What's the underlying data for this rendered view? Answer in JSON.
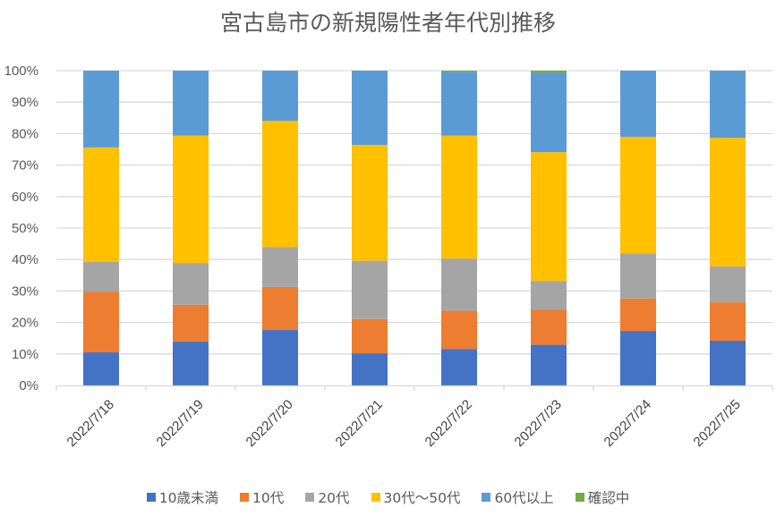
{
  "chart_data": {
    "type": "bar",
    "stacked": true,
    "percent_stacked": true,
    "title": "宮古島市の新規陽性者年代別推移",
    "xlabel": "",
    "ylabel": "",
    "ylim": [
      0,
      100
    ],
    "yticks": [
      "0%",
      "10%",
      "20%",
      "30%",
      "40%",
      "50%",
      "60%",
      "70%",
      "80%",
      "90%",
      "100%"
    ],
    "grid": true,
    "legend_position": "bottom",
    "categories": [
      "2022/7/18",
      "2022/7/19",
      "2022/7/20",
      "2022/7/21",
      "2022/7/22",
      "2022/7/23",
      "2022/7/24",
      "2022/7/25"
    ],
    "series": [
      {
        "name": "10歳未満",
        "color": "#4472C4",
        "values": [
          10.5,
          13.9,
          17.6,
          10.2,
          11.6,
          12.9,
          17.3,
          14.2
        ]
      },
      {
        "name": "10代",
        "color": "#ED7D31",
        "values": [
          19.3,
          11.7,
          13.7,
          10.9,
          12.1,
          11.1,
          10.3,
          12.2
        ]
      },
      {
        "name": "20代",
        "color": "#A5A5A5",
        "values": [
          9.5,
          13.3,
          12.7,
          18.5,
          16.6,
          9.2,
          14.4,
          11.4
        ]
      },
      {
        "name": "30代〜50代",
        "color": "#FFC000",
        "values": [
          36.3,
          40.5,
          40.1,
          36.8,
          39.1,
          40.9,
          37.0,
          40.9
        ]
      },
      {
        "name": "60代以上",
        "color": "#5B9BD5",
        "values": [
          24.4,
          20.6,
          15.9,
          23.6,
          20.2,
          25.2,
          21.0,
          21.3
        ]
      },
      {
        "name": "確認中",
        "color": "#70AD47",
        "values": [
          0,
          0,
          0,
          0,
          0.4,
          0.7,
          0,
          0
        ]
      }
    ]
  }
}
